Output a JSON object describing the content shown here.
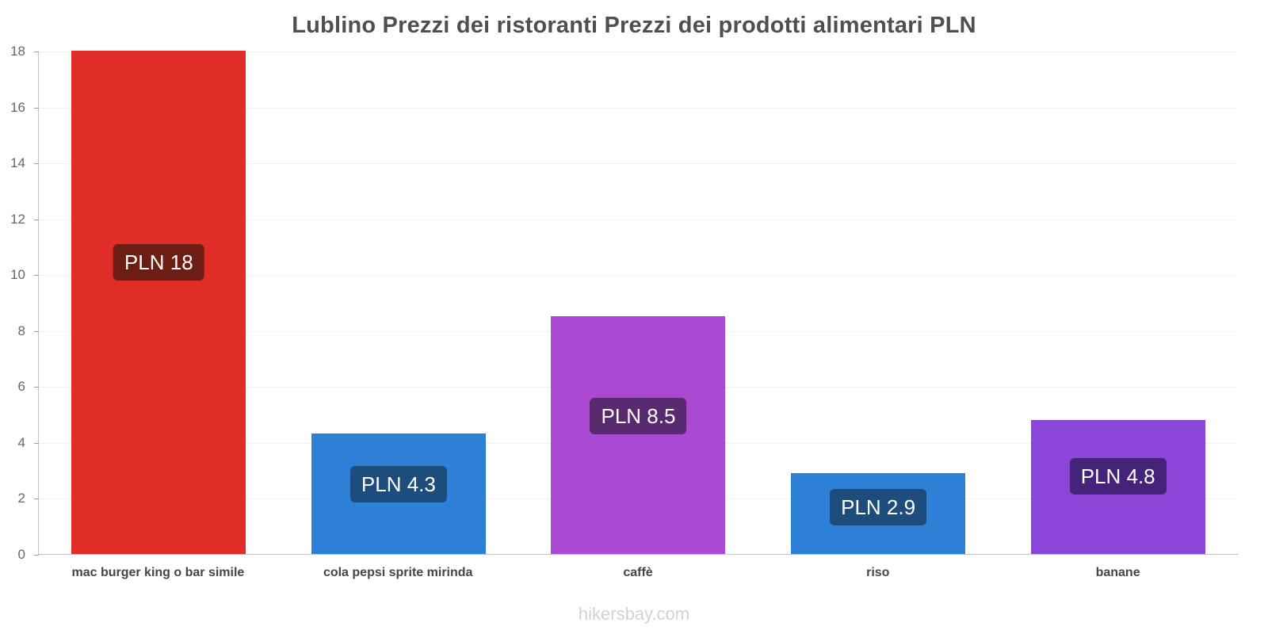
{
  "page": {
    "footer": "hikersbay.com"
  },
  "chart_data": {
    "type": "bar",
    "title": "Lublino Prezzi dei ristoranti Prezzi dei prodotti alimentari PLN",
    "categories": [
      "mac burger king o bar simile",
      "cola pepsi sprite mirinda",
      "caffè",
      "riso",
      "banane"
    ],
    "values": [
      18,
      4.3,
      8.5,
      2.9,
      4.8
    ],
    "value_labels": [
      "PLN 18",
      "PLN 4.3",
      "PLN 8.5",
      "PLN 2.9",
      "PLN 4.8"
    ],
    "currency": "PLN",
    "bar_colors": [
      "#e12d28",
      "#2e7fd6",
      "#aa4ad2",
      "#2e7fd6",
      "#8a46d8"
    ],
    "badge_colors": [
      "#6e1d14",
      "#1c4d7d",
      "#5a2a70",
      "#1c4d7d",
      "#45237a"
    ],
    "ylim": [
      0,
      18
    ],
    "yticks": [
      0,
      2,
      4,
      6,
      8,
      10,
      12,
      14,
      16,
      18
    ],
    "grid": true,
    "legend": false,
    "xlabel": "",
    "ylabel": ""
  }
}
